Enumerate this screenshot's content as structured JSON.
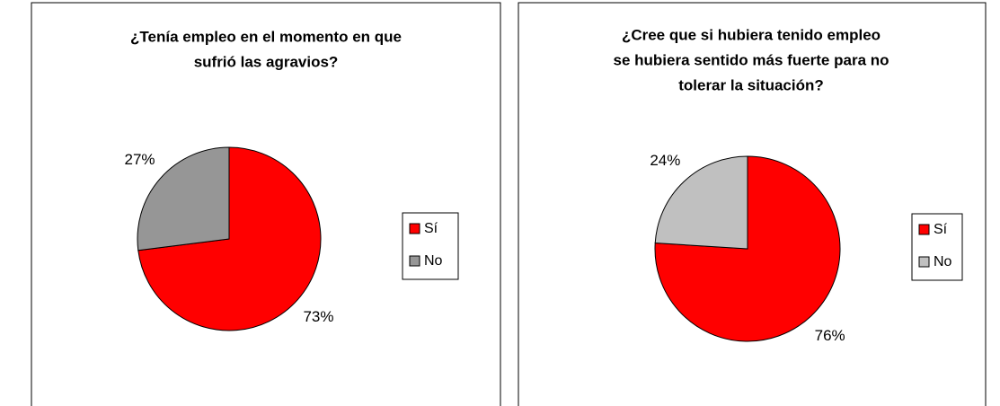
{
  "chart_data": [
    {
      "type": "pie",
      "title": [
        "¿Tenía empleo en el momento en que",
        "sufrió las agravios?"
      ],
      "categories": [
        "Sí",
        "No"
      ],
      "values": [
        73,
        27
      ],
      "value_labels": [
        "73%",
        "27%"
      ],
      "colors": [
        "#ff0000",
        "#969696"
      ],
      "legend": "right"
    },
    {
      "type": "pie",
      "title": [
        "¿Cree que si hubiera tenido empleo",
        "se hubiera sentido más fuerte para no",
        "tolerar la situación?"
      ],
      "categories": [
        "Sí",
        "No"
      ],
      "values": [
        76,
        24
      ],
      "value_labels": [
        "76%",
        "24%"
      ],
      "colors": [
        "#ff0000",
        "#c0c0c0"
      ],
      "legend": "right"
    }
  ]
}
